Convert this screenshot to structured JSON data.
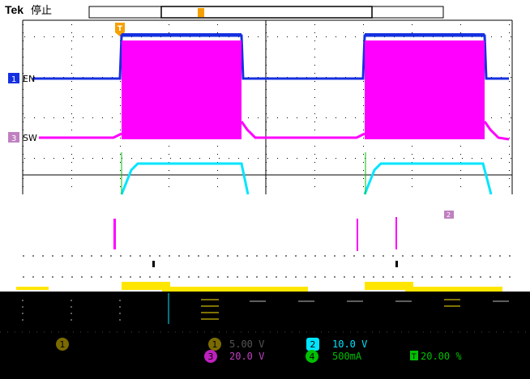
{
  "header": {
    "brand": "Tek",
    "acq_state": "停止",
    "trigger_marker": "T"
  },
  "channels": [
    {
      "id": "1",
      "label": "EN",
      "color": "#1530e0"
    },
    {
      "id": "2",
      "label": "",
      "color": "#00e5ff"
    },
    {
      "id": "3",
      "label": "SW",
      "color": "#ff00ff"
    },
    {
      "id": "4",
      "label": "",
      "color": "#00c000"
    }
  ],
  "marker_2": "2",
  "readouts": {
    "left_ch1_badge": "1",
    "ch1": {
      "num": "1",
      "value": "5.00 V"
    },
    "ch2": {
      "num": "2",
      "value": "10.0 V"
    },
    "ch3": {
      "num": "3",
      "value": "20.0 V"
    },
    "ch4": {
      "num": "4",
      "value": "500mA"
    },
    "trigger_level": {
      "icon": "T",
      "value": "20.00 %"
    }
  },
  "colors": {
    "ch1": "#1530e0",
    "ch2": "#00e5ff",
    "ch3": "#ff00ff",
    "ch4": "#00c000",
    "trigger": "#f5a000"
  }
}
